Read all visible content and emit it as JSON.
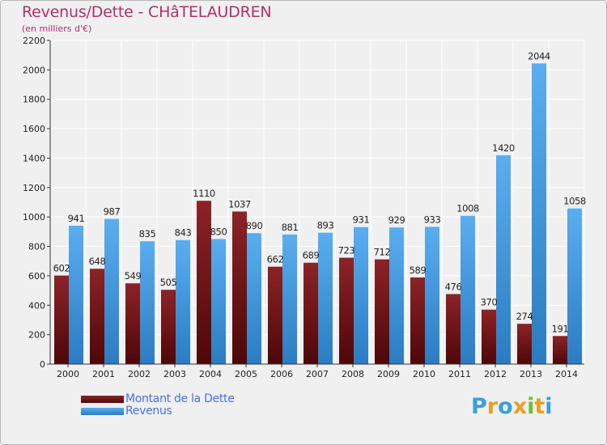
{
  "title": "Revenus/Dette - CHâTELAUDREN",
  "subtitle": "(en milliers d'€)",
  "chart_data": {
    "type": "bar",
    "title": "Revenus/Dette - CHâTELAUDREN",
    "subtitle": "(en milliers d'€)",
    "xlabel": "",
    "ylabel": "",
    "ylim": [
      0,
      2200
    ],
    "yticks": [
      0,
      200,
      400,
      600,
      800,
      1000,
      1200,
      1400,
      1600,
      1800,
      2000,
      2200
    ],
    "grid": true,
    "legend_position": "bottom-left",
    "categories": [
      "2000",
      "2001",
      "2002",
      "2003",
      "2004",
      "2005",
      "2006",
      "2007",
      "2008",
      "2009",
      "2010",
      "2011",
      "2012",
      "2013",
      "2014"
    ],
    "series": [
      {
        "name": "Montant de la Dette",
        "color": "#7a1418",
        "values": [
          602,
          648,
          549,
          505,
          1110,
          1037,
          662,
          689,
          723,
          712,
          589,
          476,
          370,
          274,
          191
        ]
      },
      {
        "name": "Revenus",
        "color": "#3d95dc",
        "values": [
          941,
          987,
          835,
          843,
          850,
          890,
          881,
          893,
          931,
          929,
          933,
          1008,
          1420,
          2044,
          1058
        ]
      }
    ]
  },
  "legend": {
    "items": [
      {
        "label": "Montant de la Dette",
        "color": "#7a1418"
      },
      {
        "label": "Revenus",
        "color": "#3d95dc"
      }
    ]
  },
  "logo": {
    "text": "Proxiti",
    "letters": [
      {
        "char": "P",
        "color": "#3aa0dc"
      },
      {
        "char": "r",
        "color": "#e8a020"
      },
      {
        "char": "o",
        "color": "#3aa0dc"
      },
      {
        "char": "x",
        "color": "#e8a020"
      },
      {
        "char": "i",
        "color": "#6cbf3a"
      },
      {
        "char": "t",
        "color": "#e8a020"
      },
      {
        "char": "i",
        "color": "#3aa0dc"
      }
    ]
  }
}
